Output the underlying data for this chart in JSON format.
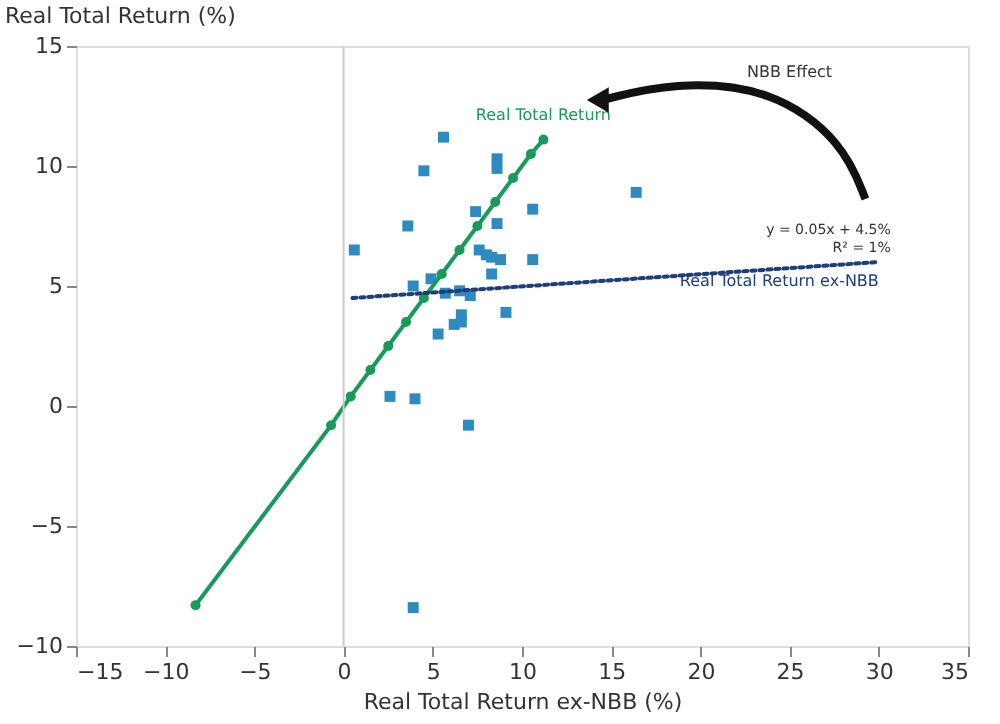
{
  "chart_data": {
    "type": "scatter",
    "xlabel": "Real Total Return ex-NBB (%)",
    "ylabel": "Real Total Return (%)",
    "xlim": [
      -15,
      35
    ],
    "xticks": [
      -15,
      -10,
      -5,
      0,
      5,
      10,
      15,
      20,
      25,
      30,
      35
    ],
    "ylim": [
      -10,
      15
    ],
    "yticks": [
      -10,
      -5,
      0,
      5,
      10,
      15
    ],
    "grid": false,
    "series": [
      {
        "color": "#2e8bc0",
        "marker": "square",
        "x": [
          0.6,
          5.6,
          4.5,
          3.6,
          7.4,
          8.6,
          8.6,
          10.6,
          16.4,
          8.6,
          10.6,
          7.6,
          8.0,
          8.3,
          8.8,
          8.3,
          4.9,
          3.9,
          5.7,
          6.5,
          7.1,
          6.6,
          9.1,
          6.2,
          6.6,
          5.3,
          2.6,
          4.0,
          7.0,
          3.9
        ],
        "values": [
          6.5,
          11.2,
          9.8,
          7.5,
          8.1,
          10.3,
          9.9,
          8.2,
          8.9,
          7.6,
          6.1,
          6.5,
          6.3,
          6.2,
          6.1,
          5.5,
          5.3,
          5.0,
          4.7,
          4.8,
          4.6,
          3.8,
          3.9,
          3.4,
          3.5,
          3.0,
          0.4,
          0.3,
          -0.8,
          -8.4
        ]
      },
      {
        "type": "line",
        "name": "Real Total Return",
        "color": "#1a9a5a",
        "marker": "circle",
        "line_style": "solid",
        "x": [
          -8.3,
          -0.7,
          0.4,
          1.5,
          2.5,
          3.5,
          4.5,
          5.5,
          6.5,
          7.5,
          8.5,
          9.5,
          10.5,
          11.2
        ],
        "values": [
          -8.3,
          -0.8,
          0.4,
          1.5,
          2.5,
          3.5,
          4.5,
          5.5,
          6.5,
          7.5,
          8.5,
          9.5,
          10.5,
          11.1
        ]
      },
      {
        "type": "line",
        "name": "Real Total Return ex-NBB",
        "color": "#1f3d7a",
        "marker": "none",
        "line_style": "dotted",
        "x": [
          0.5,
          30
        ],
        "values": [
          4.5,
          6.0
        ]
      }
    ],
    "ref_lines": [
      {
        "axis": "x",
        "value": 0,
        "color": "#cccccc"
      }
    ],
    "annotations": [
      "NBB Effect",
      "y = 0.05x + 4.5%",
      "R² = 1%"
    ]
  }
}
